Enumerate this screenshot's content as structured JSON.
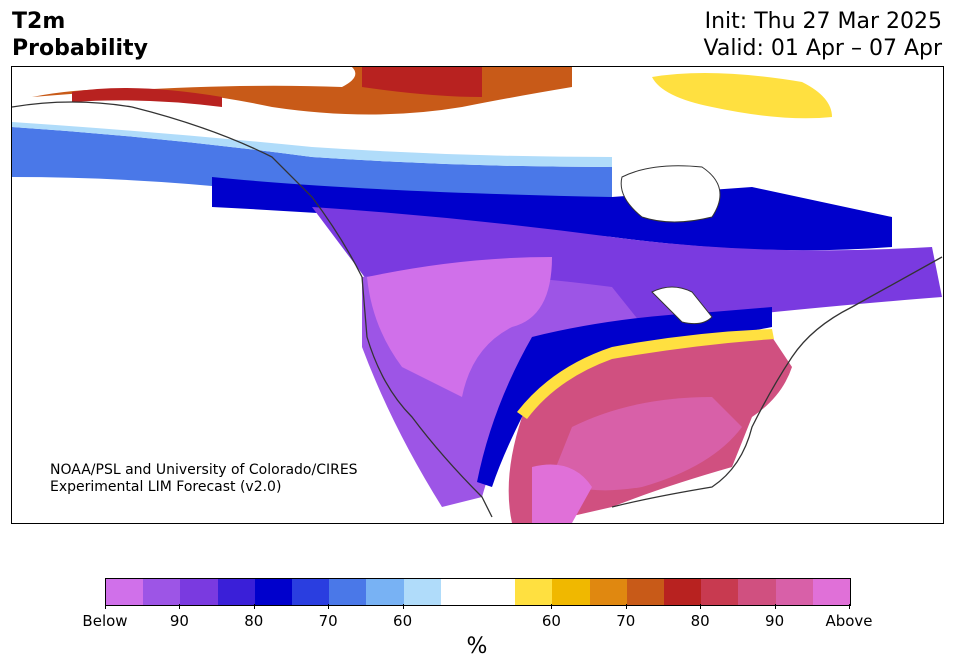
{
  "header": {
    "title_line1": "T2m",
    "title_line2": "Probability",
    "init": "Init: Thu 27 Mar 2025",
    "valid": "Valid: 01 Apr – 07 Apr"
  },
  "credit": {
    "line1": "NOAA/PSL and University of Colorado/CIRES",
    "line2": "Experimental LIM Forecast (v2.0)"
  },
  "colorbar": {
    "colors": [
      "#d070ea",
      "#9d55e6",
      "#7a3ae0",
      "#3a1fd8",
      "#0000cc",
      "#2a3ee0",
      "#4a78e8",
      "#78b2f4",
      "#b0dcfa",
      "#ffffff",
      "#ffffff",
      "#ffe040",
      "#f0b800",
      "#e08810",
      "#c85a18",
      "#b82220",
      "#c83a50",
      "#d05080",
      "#d860a8",
      "#e070d8"
    ],
    "tick_labels": [
      "Below",
      "90",
      "80",
      "70",
      "60",
      "60",
      "70",
      "80",
      "90",
      "Above"
    ],
    "unit": "%"
  },
  "map": {
    "colors": {
      "ocean": "#ffffff",
      "land_outline": "#333333"
    }
  }
}
